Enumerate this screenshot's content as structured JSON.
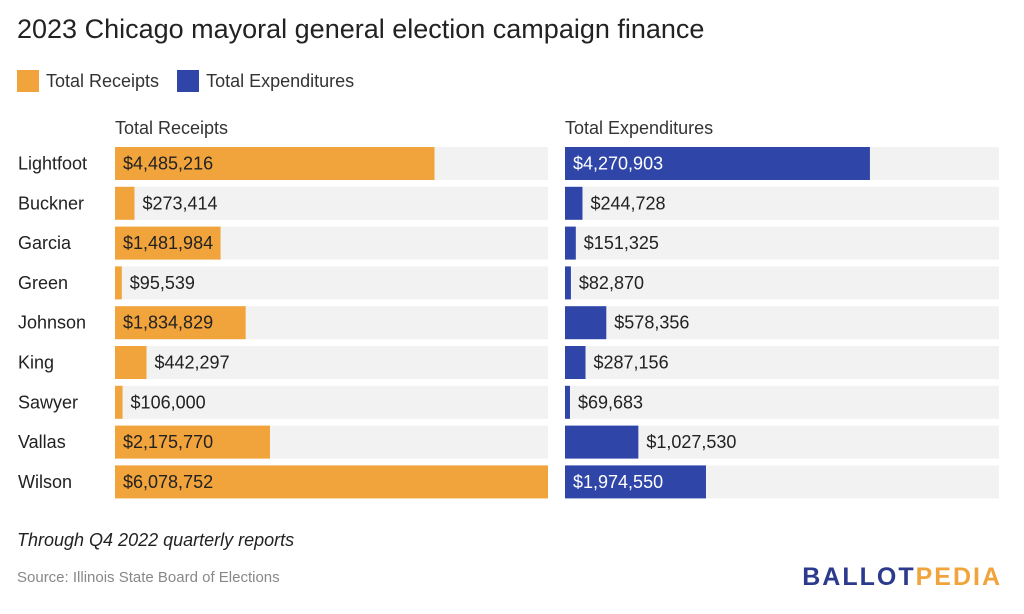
{
  "title": "2023 Chicago mayoral general election campaign finance",
  "legend": [
    {
      "label": "Total Receipts",
      "color": "#f1a43b"
    },
    {
      "label": "Total Expenditures",
      "color": "#2f45a8"
    }
  ],
  "footnote": "Through Q4 2022 quarterly reports",
  "source": "Source: Illinois State Board of Elections",
  "logo": {
    "part1": "BALLOT",
    "part2": "PEDIA"
  },
  "chart_data": {
    "type": "bar",
    "orientation": "horizontal",
    "layout": "small-multiples",
    "categories": [
      "Lightfoot",
      "Buckner",
      "Garcia",
      "Green",
      "Johnson",
      "King",
      "Sawyer",
      "Vallas",
      "Wilson"
    ],
    "series": [
      {
        "name": "Total Receipts",
        "color": "#f1a43b",
        "values": [
          4485216,
          273414,
          1481984,
          95539,
          1834829,
          442297,
          106000,
          2175770,
          6078752
        ],
        "labels": [
          "$4,485,216",
          "$273,414",
          "$1,481,984",
          "$95,539",
          "$1,834,829",
          "$442,297",
          "$106,000",
          "$2,175,770",
          "$6,078,752"
        ]
      },
      {
        "name": "Total Expenditures",
        "color": "#2f45a8",
        "values": [
          4270903,
          244728,
          151325,
          82870,
          578356,
          287156,
          69683,
          1027530,
          1974550
        ],
        "labels": [
          "$4,270,903",
          "$244,728",
          "$151,325",
          "$82,870",
          "$578,356",
          "$287,156",
          "$69,683",
          "$1,027,530",
          "$1,974,550"
        ]
      }
    ],
    "xlim": [
      0,
      6078752
    ],
    "background_track_color": "#f2f2f2"
  }
}
